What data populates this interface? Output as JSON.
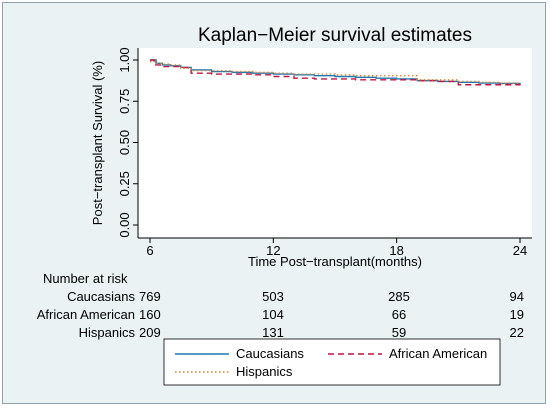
{
  "chart_data": {
    "type": "line",
    "title": "Kaplan−Meier survival estimates",
    "xlabel": "Time Post−transplant(months)",
    "ylabel": "Post−transplant Survival (%)",
    "xlim": [
      6,
      24
    ],
    "ylim": [
      0,
      1
    ],
    "xticks": [
      "6",
      "12",
      "18",
      "24"
    ],
    "xtick_values": [
      6,
      12,
      18,
      24
    ],
    "yticks": [
      "0.00",
      "0.25",
      "0.50",
      "0.75",
      "1.00"
    ],
    "ytick_values": [
      0,
      0.25,
      0.5,
      0.75,
      1.0
    ],
    "grid": false,
    "legend_position": "bottom",
    "series": [
      {
        "name": "Caucasians",
        "color": "#1f77b4",
        "style": "solid",
        "x": [
          6,
          6.3,
          6.6,
          7,
          7.5,
          8,
          9,
          10,
          11,
          12,
          13,
          14,
          15,
          16,
          17,
          18,
          19,
          20,
          21,
          22,
          23,
          24
        ],
        "y": [
          1.0,
          0.98,
          0.97,
          0.965,
          0.955,
          0.94,
          0.93,
          0.925,
          0.92,
          0.915,
          0.91,
          0.905,
          0.9,
          0.895,
          0.89,
          0.885,
          0.875,
          0.87,
          0.865,
          0.86,
          0.858,
          0.855
        ]
      },
      {
        "name": "African American",
        "color": "#c0143c",
        "style": "dashed",
        "x": [
          6,
          6.2,
          6.5,
          7,
          7.5,
          8,
          9,
          10,
          11,
          12,
          13,
          14,
          15,
          16,
          17,
          18,
          19,
          20,
          21,
          22,
          23,
          24
        ],
        "y": [
          1.0,
          0.97,
          0.96,
          0.96,
          0.955,
          0.92,
          0.915,
          0.915,
          0.91,
          0.9,
          0.89,
          0.885,
          0.885,
          0.88,
          0.88,
          0.88,
          0.875,
          0.87,
          0.85,
          0.85,
          0.85,
          0.855
        ]
      },
      {
        "name": "Hispanics",
        "color": "#e8852a",
        "style": "dotted",
        "x": [
          6,
          6.3,
          6.6,
          7,
          7.5,
          8,
          9,
          10,
          11,
          12,
          13,
          14,
          15,
          16,
          17,
          18,
          19,
          20,
          21,
          22,
          23,
          24
        ],
        "y": [
          0.99,
          0.98,
          0.975,
          0.97,
          0.95,
          0.935,
          0.935,
          0.93,
          0.925,
          0.92,
          0.915,
          0.915,
          0.91,
          0.905,
          0.905,
          0.905,
          0.88,
          0.88,
          0.87,
          0.865,
          0.86,
          0.855
        ]
      }
    ]
  },
  "risk_table": {
    "title": "Number at risk",
    "rows": [
      {
        "label": "Caucasians",
        "values": [
          "769",
          "503",
          "285",
          "94"
        ]
      },
      {
        "label": "African American",
        "values": [
          "160",
          "104",
          "66",
          "19"
        ]
      },
      {
        "label": "Hispanics",
        "values": [
          "209",
          "131",
          "59",
          "22"
        ]
      }
    ]
  },
  "colors": {
    "background": "#eaf2f3",
    "plot_area": "#ffffff"
  }
}
